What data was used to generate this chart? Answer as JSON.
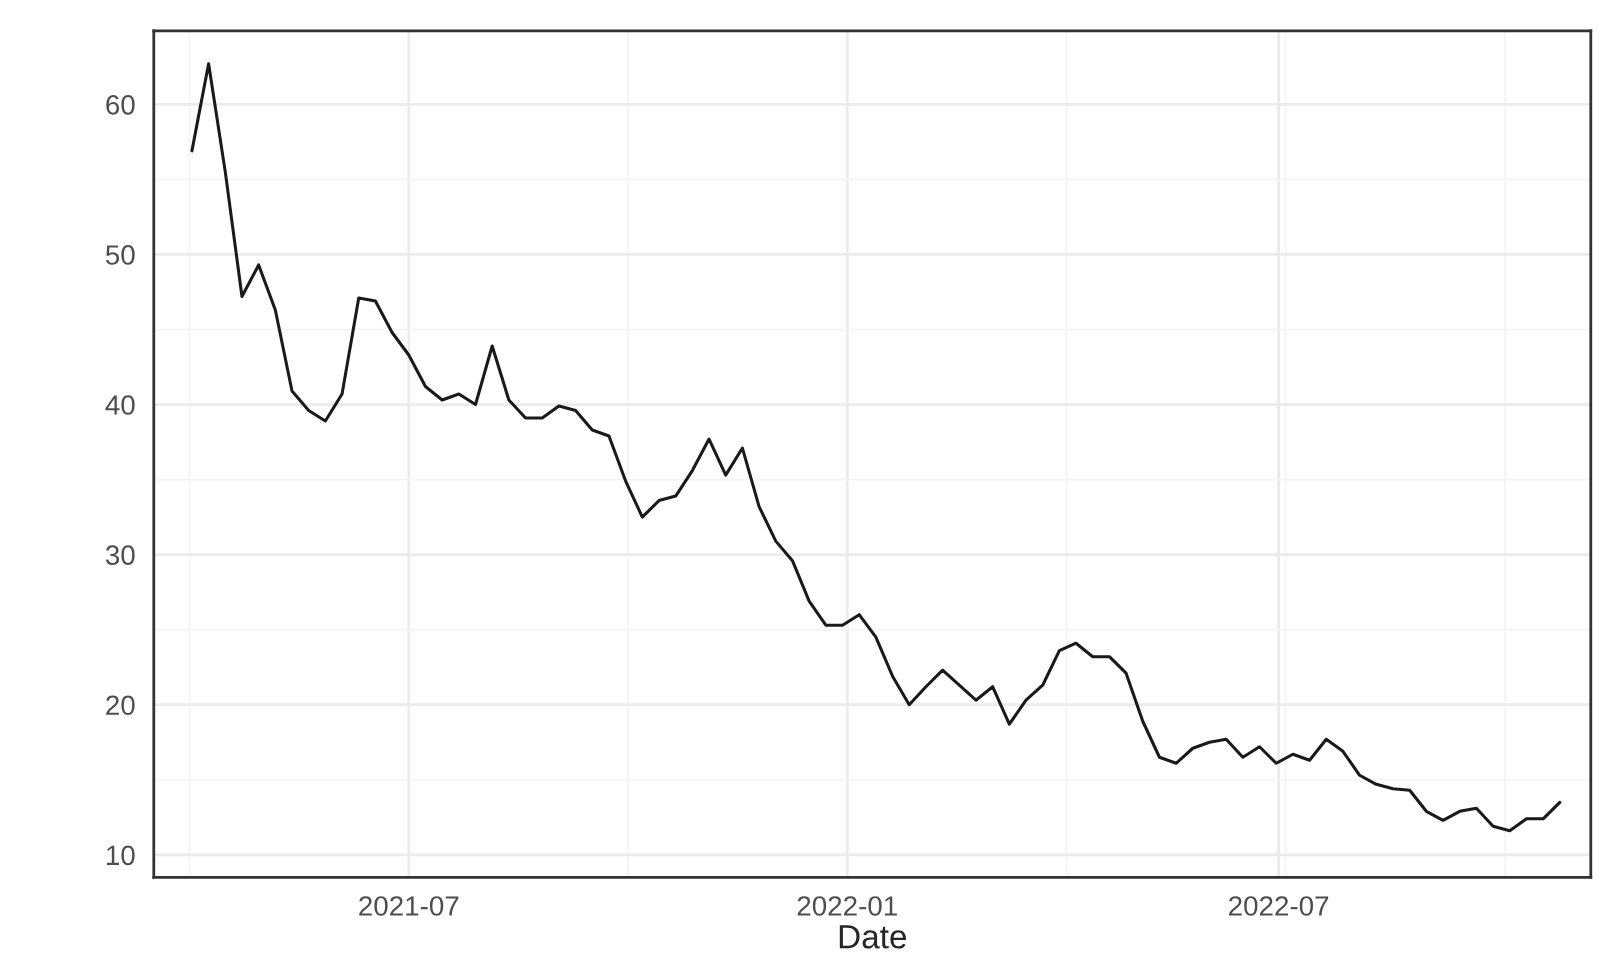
{
  "chart_data": {
    "type": "line",
    "xlabel": "Date",
    "x": [
      "2021-04-01",
      "2021-04-08",
      "2021-04-15",
      "2021-04-22",
      "2021-04-29",
      "2021-05-06",
      "2021-05-13",
      "2021-05-20",
      "2021-05-27",
      "2021-06-03",
      "2021-06-10",
      "2021-06-17",
      "2021-06-24",
      "2021-07-01",
      "2021-07-08",
      "2021-07-15",
      "2021-07-22",
      "2021-07-29",
      "2021-08-05",
      "2021-08-12",
      "2021-08-19",
      "2021-08-26",
      "2021-09-02",
      "2021-09-09",
      "2021-09-16",
      "2021-09-23",
      "2021-09-30",
      "2021-10-07",
      "2021-10-14",
      "2021-10-21",
      "2021-10-28",
      "2021-11-04",
      "2021-11-11",
      "2021-11-18",
      "2021-11-25",
      "2021-12-02",
      "2021-12-09",
      "2021-12-16",
      "2021-12-23",
      "2021-12-30",
      "2022-01-06",
      "2022-01-13",
      "2022-01-20",
      "2022-01-27",
      "2022-02-03",
      "2022-02-10",
      "2022-02-17",
      "2022-02-24",
      "2022-03-03",
      "2022-03-10",
      "2022-03-17",
      "2022-03-24",
      "2022-03-31",
      "2022-04-07",
      "2022-04-14",
      "2022-04-21",
      "2022-04-28",
      "2022-05-05",
      "2022-05-12",
      "2022-05-19",
      "2022-05-26",
      "2022-06-02",
      "2022-06-09",
      "2022-06-16",
      "2022-06-23",
      "2022-06-30",
      "2022-07-07",
      "2022-07-14",
      "2022-07-21",
      "2022-07-28",
      "2022-08-04",
      "2022-08-11",
      "2022-08-18",
      "2022-08-25",
      "2022-09-01",
      "2022-09-08",
      "2022-09-15",
      "2022-09-22",
      "2022-09-29",
      "2022-10-06",
      "2022-10-13",
      "2022-10-20",
      "2022-10-27"
    ],
    "series": [
      {
        "color": "#1a1a1a",
        "values": [
          56.9,
          62.7,
          55.5,
          47.2,
          49.3,
          46.3,
          40.9,
          39.6,
          38.9,
          40.7,
          47.1,
          46.9,
          44.8,
          43.3,
          41.2,
          40.3,
          40.7,
          40.0,
          43.9,
          40.3,
          39.1,
          39.1,
          39.9,
          39.6,
          38.3,
          37.9,
          34.9,
          32.5,
          33.6,
          33.9,
          35.6,
          37.7,
          35.3,
          37.1,
          33.2,
          30.9,
          29.6,
          26.9,
          25.3,
          25.3,
          26.0,
          24.5,
          21.9,
          20.0,
          21.2,
          22.3,
          21.3,
          20.3,
          21.2,
          18.7,
          20.3,
          21.3,
          23.6,
          24.1,
          23.2,
          23.2,
          22.1,
          18.9,
          16.5,
          16.1,
          17.1,
          17.5,
          17.7,
          16.5,
          17.2,
          16.1,
          16.7,
          16.3,
          17.7,
          16.9,
          15.3,
          14.7,
          14.4,
          14.3,
          12.9,
          12.3,
          12.9,
          13.1,
          11.9,
          11.6,
          12.4,
          12.4,
          13.5
        ]
      }
    ],
    "xlim": [
      "2021-03-16",
      "2022-11-09"
    ],
    "xticks": [
      {
        "value": "2021-07-01",
        "label": "2021-07"
      },
      {
        "value": "2022-01-01",
        "label": "2022-01"
      },
      {
        "value": "2022-07-01",
        "label": "2022-07"
      }
    ],
    "ylim": [
      8.5,
      64.9
    ],
    "yticks": [
      10,
      20,
      30,
      40,
      50,
      60
    ],
    "grid": true,
    "line_style": "solid",
    "marker": "none"
  }
}
